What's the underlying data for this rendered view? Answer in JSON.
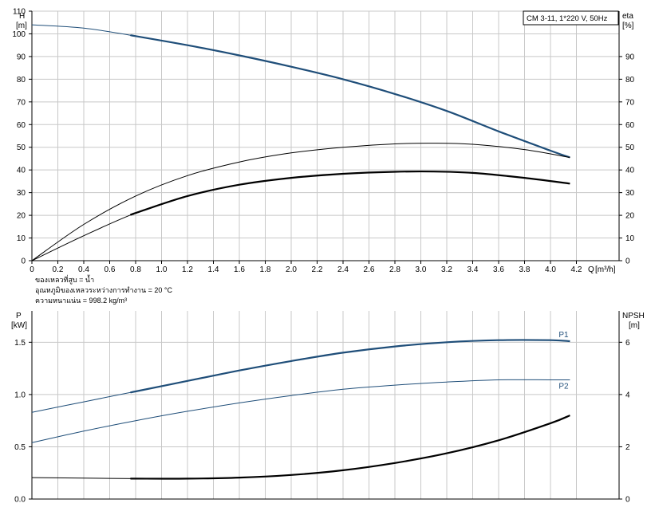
{
  "colors": {
    "blue": "#1f4e79",
    "black": "#000000",
    "grid": "#c8c8c8"
  },
  "chart_data": [
    {
      "type": "line",
      "legend_box": "CM 3-11, 1*220 V, 50Hz",
      "ylabel_left": "H",
      "yunit_left": "[m]",
      "ylabel_right": "eta",
      "yunit_right": "[%]",
      "xlabel": "Q",
      "xunit": "[m³/h]",
      "xlim": [
        0,
        4.2
      ],
      "xticks": [
        "0",
        "0.2",
        "0.4",
        "0.6",
        "0.8",
        "1.0",
        "1.2",
        "1.4",
        "1.6",
        "1.8",
        "2.0",
        "2.2",
        "2.4",
        "2.6",
        "2.8",
        "3.0",
        "3.2",
        "3.4",
        "3.6",
        "3.8",
        "4.0",
        "4.2"
      ],
      "ylim_left": [
        0,
        110
      ],
      "yticks_left": [
        "0",
        "10",
        "20",
        "30",
        "40",
        "50",
        "60",
        "70",
        "80",
        "90",
        "100",
        "110"
      ],
      "ylim_right": [
        0,
        110
      ],
      "yticks_right": [
        "0",
        "10",
        "20",
        "30",
        "40",
        "50",
        "60",
        "70",
        "80",
        "90"
      ],
      "grid": true,
      "notes": [
        "ของเหลวที่สูบ = น้ำ",
        "อุณหภูมิของเหลวระหว่างการทำงาน = 20 °C",
        "ความหนาแน่น = 998.2 kg/m³"
      ],
      "series": [
        {
          "name": "",
          "axis": "left",
          "color": "blue",
          "x": [
            0,
            0.4,
            0.8,
            1.2,
            1.6,
            2.0,
            2.4,
            2.8,
            3.2,
            3.6,
            4.0,
            4.15
          ],
          "y": [
            104,
            102.5,
            99,
            95,
            90.5,
            85.5,
            80,
            73.5,
            66,
            57,
            48.5,
            45.5
          ],
          "thick_from": 0.78
        },
        {
          "name": "",
          "axis": "right",
          "color": "black",
          "x": [
            0,
            0.4,
            0.8,
            1.2,
            1.6,
            2.0,
            2.4,
            2.8,
            3.1,
            3.4,
            3.8,
            4.15
          ],
          "y": [
            0,
            16,
            28.5,
            37.5,
            43.5,
            47.5,
            50,
            51.5,
            51.8,
            51.3,
            49,
            45.5
          ],
          "thick_from": null
        },
        {
          "name": "",
          "axis": "right",
          "color": "black",
          "x": [
            0,
            0.4,
            0.8,
            1.2,
            1.6,
            2.0,
            2.4,
            2.8,
            3.1,
            3.4,
            3.8,
            4.15
          ],
          "y": [
            0,
            11,
            21,
            28.5,
            33.5,
            36.5,
            38.3,
            39.2,
            39.3,
            38.7,
            36.5,
            34
          ],
          "thick_from": 0.78
        }
      ]
    },
    {
      "type": "line",
      "ylabel_left": "P",
      "yunit_left": "[kW]",
      "ylabel_right": "NPSH",
      "yunit_right": "[m]",
      "xlim": [
        0,
        4.2
      ],
      "ylim_left": [
        0,
        1.8
      ],
      "yticks_left": [
        "0.0",
        "0.5",
        "1.0",
        "1.5"
      ],
      "ylim_right": [
        0,
        7.2
      ],
      "yticks_right": [
        "0",
        "2",
        "4",
        "6"
      ],
      "grid": true,
      "series": [
        {
          "name": "P1",
          "axis": "left",
          "color": "blue",
          "x": [
            0,
            0.4,
            0.8,
            1.2,
            1.6,
            2.0,
            2.4,
            2.8,
            3.2,
            3.6,
            4.0,
            4.15
          ],
          "y": [
            0.83,
            0.93,
            1.03,
            1.13,
            1.23,
            1.32,
            1.4,
            1.46,
            1.5,
            1.52,
            1.52,
            1.51
          ],
          "thick_from": 0.78
        },
        {
          "name": "P2",
          "axis": "left",
          "color": "blue",
          "x": [
            0,
            0.4,
            0.8,
            1.2,
            1.6,
            2.0,
            2.4,
            2.8,
            3.2,
            3.6,
            4.0,
            4.15
          ],
          "y": [
            0.54,
            0.65,
            0.75,
            0.84,
            0.92,
            0.99,
            1.05,
            1.09,
            1.12,
            1.14,
            1.14,
            1.14
          ],
          "thick_from": null
        },
        {
          "name": "",
          "axis": "right",
          "color": "black",
          "x": [
            0,
            0.4,
            0.8,
            1.2,
            1.6,
            2.0,
            2.4,
            2.8,
            3.2,
            3.6,
            4.0,
            4.15
          ],
          "y": [
            0.82,
            0.8,
            0.78,
            0.78,
            0.82,
            0.92,
            1.1,
            1.38,
            1.75,
            2.25,
            2.9,
            3.2
          ],
          "thick_from": 0.78
        }
      ]
    }
  ]
}
